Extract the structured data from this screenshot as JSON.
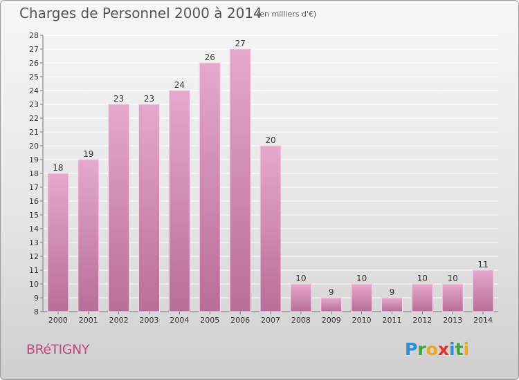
{
  "header": {
    "title": "Charges de Personnel 2000 à 2014",
    "subtitle": "(en milliers d'€)"
  },
  "footer": {
    "commune": "BRéTIGNY",
    "logo_letters": [
      {
        "char": "P",
        "color": "#2c8fd6"
      },
      {
        "char": "r",
        "color": "#3aa83a"
      },
      {
        "char": "o",
        "color": "#f2a81a"
      },
      {
        "char": "x",
        "color": "#e8312a"
      },
      {
        "char": "i",
        "color": "#2c8fd6"
      },
      {
        "char": "t",
        "color": "#3aa83a"
      },
      {
        "char": "i",
        "color": "#f2a81a"
      }
    ]
  },
  "colors": {
    "bar_light": "#e6a8cc",
    "bar_dark": "#b86e98",
    "axis": "#777777",
    "grid": "#ffffff",
    "text": "#333333"
  },
  "chart_data": {
    "type": "bar",
    "categories": [
      "2000",
      "2001",
      "2002",
      "2003",
      "2004",
      "2005",
      "2006",
      "2007",
      "2008",
      "2009",
      "2010",
      "2011",
      "2012",
      "2013",
      "2014"
    ],
    "values": [
      18,
      19,
      23,
      23,
      24,
      26,
      27,
      20,
      10,
      9,
      10,
      9,
      10,
      10,
      11
    ],
    "ylim": [
      8,
      28
    ],
    "yticks": [
      8,
      9,
      10,
      11,
      12,
      13,
      14,
      15,
      16,
      17,
      18,
      19,
      20,
      21,
      22,
      23,
      24,
      25,
      26,
      27,
      28
    ],
    "grid": true,
    "data_labels": true
  }
}
